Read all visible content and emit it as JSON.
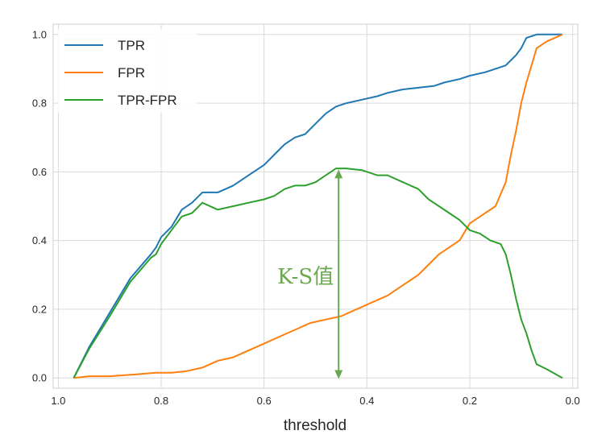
{
  "chart_data": {
    "type": "line",
    "title": "",
    "xlabel": "threshold",
    "ylabel": "",
    "xlim": [
      1.01,
      -0.01
    ],
    "ylim": [
      -0.03,
      1.03
    ],
    "x_reversed": true,
    "grid": true,
    "legend_position": "upper-left",
    "xticks": [
      {
        "value": 1.0,
        "label": "1.0"
      },
      {
        "value": 0.8,
        "label": "0.8"
      },
      {
        "value": 0.6,
        "label": "0.6"
      },
      {
        "value": 0.4,
        "label": "0.4"
      },
      {
        "value": 0.2,
        "label": "0.2"
      },
      {
        "value": 0.0,
        "label": "0.0"
      }
    ],
    "yticks": [
      {
        "value": 0.0,
        "label": "0.0"
      },
      {
        "value": 0.2,
        "label": "0.2"
      },
      {
        "value": 0.4,
        "label": "0.4"
      },
      {
        "value": 0.6,
        "label": "0.6"
      },
      {
        "value": 0.8,
        "label": "0.8"
      },
      {
        "value": 1.0,
        "label": "1.0"
      }
    ],
    "series": [
      {
        "name": "TPR",
        "color": "#1f77b4",
        "points": [
          [
            0.97,
            0.0
          ],
          [
            0.94,
            0.09
          ],
          [
            0.9,
            0.19
          ],
          [
            0.86,
            0.29
          ],
          [
            0.82,
            0.36
          ],
          [
            0.81,
            0.38
          ],
          [
            0.8,
            0.41
          ],
          [
            0.78,
            0.44
          ],
          [
            0.76,
            0.49
          ],
          [
            0.74,
            0.51
          ],
          [
            0.72,
            0.54
          ],
          [
            0.69,
            0.54
          ],
          [
            0.66,
            0.56
          ],
          [
            0.63,
            0.59
          ],
          [
            0.6,
            0.62
          ],
          [
            0.58,
            0.65
          ],
          [
            0.56,
            0.68
          ],
          [
            0.54,
            0.7
          ],
          [
            0.52,
            0.71
          ],
          [
            0.5,
            0.74
          ],
          [
            0.48,
            0.77
          ],
          [
            0.46,
            0.79
          ],
          [
            0.44,
            0.8
          ],
          [
            0.41,
            0.81
          ],
          [
            0.38,
            0.82
          ],
          [
            0.36,
            0.83
          ],
          [
            0.33,
            0.84
          ],
          [
            0.3,
            0.845
          ],
          [
            0.27,
            0.85
          ],
          [
            0.25,
            0.86
          ],
          [
            0.22,
            0.87
          ],
          [
            0.2,
            0.88
          ],
          [
            0.17,
            0.89
          ],
          [
            0.15,
            0.9
          ],
          [
            0.13,
            0.91
          ],
          [
            0.11,
            0.94
          ],
          [
            0.1,
            0.96
          ],
          [
            0.09,
            0.99
          ],
          [
            0.07,
            1.0
          ],
          [
            0.05,
            1.0
          ],
          [
            0.03,
            1.0
          ],
          [
            0.02,
            1.0
          ]
        ]
      },
      {
        "name": "FPR",
        "color": "#ff7f0e",
        "points": [
          [
            0.97,
            0.0
          ],
          [
            0.94,
            0.005
          ],
          [
            0.9,
            0.005
          ],
          [
            0.85,
            0.01
          ],
          [
            0.81,
            0.015
          ],
          [
            0.78,
            0.015
          ],
          [
            0.75,
            0.02
          ],
          [
            0.72,
            0.03
          ],
          [
            0.69,
            0.05
          ],
          [
            0.66,
            0.06
          ],
          [
            0.63,
            0.08
          ],
          [
            0.6,
            0.1
          ],
          [
            0.57,
            0.12
          ],
          [
            0.54,
            0.14
          ],
          [
            0.51,
            0.16
          ],
          [
            0.48,
            0.17
          ],
          [
            0.45,
            0.18
          ],
          [
            0.42,
            0.2
          ],
          [
            0.39,
            0.22
          ],
          [
            0.36,
            0.24
          ],
          [
            0.33,
            0.27
          ],
          [
            0.3,
            0.3
          ],
          [
            0.28,
            0.33
          ],
          [
            0.26,
            0.36
          ],
          [
            0.24,
            0.38
          ],
          [
            0.22,
            0.4
          ],
          [
            0.2,
            0.45
          ],
          [
            0.18,
            0.47
          ],
          [
            0.15,
            0.5
          ],
          [
            0.13,
            0.57
          ],
          [
            0.12,
            0.65
          ],
          [
            0.11,
            0.72
          ],
          [
            0.1,
            0.8
          ],
          [
            0.09,
            0.86
          ],
          [
            0.08,
            0.91
          ],
          [
            0.07,
            0.96
          ],
          [
            0.05,
            0.98
          ],
          [
            0.02,
            1.0
          ]
        ]
      },
      {
        "name": "TPR-FPR",
        "color": "#2ca02c",
        "points": [
          [
            0.97,
            0.0
          ],
          [
            0.94,
            0.085
          ],
          [
            0.9,
            0.18
          ],
          [
            0.86,
            0.28
          ],
          [
            0.82,
            0.35
          ],
          [
            0.81,
            0.36
          ],
          [
            0.8,
            0.39
          ],
          [
            0.78,
            0.43
          ],
          [
            0.76,
            0.47
          ],
          [
            0.74,
            0.48
          ],
          [
            0.72,
            0.51
          ],
          [
            0.69,
            0.49
          ],
          [
            0.66,
            0.5
          ],
          [
            0.63,
            0.51
          ],
          [
            0.6,
            0.52
          ],
          [
            0.58,
            0.53
          ],
          [
            0.56,
            0.55
          ],
          [
            0.54,
            0.56
          ],
          [
            0.52,
            0.56
          ],
          [
            0.5,
            0.57
          ],
          [
            0.48,
            0.59
          ],
          [
            0.46,
            0.61
          ],
          [
            0.44,
            0.61
          ],
          [
            0.41,
            0.605
          ],
          [
            0.38,
            0.59
          ],
          [
            0.36,
            0.59
          ],
          [
            0.33,
            0.57
          ],
          [
            0.3,
            0.55
          ],
          [
            0.28,
            0.52
          ],
          [
            0.26,
            0.5
          ],
          [
            0.24,
            0.48
          ],
          [
            0.22,
            0.46
          ],
          [
            0.2,
            0.43
          ],
          [
            0.18,
            0.42
          ],
          [
            0.16,
            0.4
          ],
          [
            0.14,
            0.39
          ],
          [
            0.13,
            0.36
          ],
          [
            0.12,
            0.3
          ],
          [
            0.11,
            0.23
          ],
          [
            0.1,
            0.17
          ],
          [
            0.09,
            0.13
          ],
          [
            0.08,
            0.08
          ],
          [
            0.07,
            0.04
          ],
          [
            0.05,
            0.025
          ],
          [
            0.02,
            0.0
          ]
        ]
      }
    ],
    "annotations": [
      {
        "text": "K-S值",
        "color": "#6aa84f",
        "arrow": {
          "x": 0.455,
          "y_from": 0.607,
          "y_to": -0.003
        }
      }
    ]
  }
}
